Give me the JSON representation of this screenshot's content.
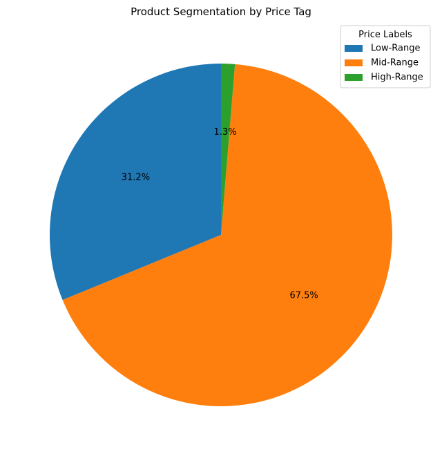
{
  "chart_data": {
    "type": "pie",
    "title": "Product Segmentation by Price Tag",
    "legend_title": "Price Labels",
    "legend_position": "top-right",
    "start_angle_deg": 90,
    "direction": "counterclockwise",
    "slices": [
      {
        "label": "Low-Range",
        "value": 31.2,
        "pct_label": "31.2%",
        "color": "#1f77b4"
      },
      {
        "label": "Mid-Range",
        "value": 67.5,
        "pct_label": "67.5%",
        "color": "#ff7f0e"
      },
      {
        "label": "High-Range",
        "value": 1.3,
        "pct_label": "1.3%",
        "color": "#2ca02c"
      }
    ]
  }
}
